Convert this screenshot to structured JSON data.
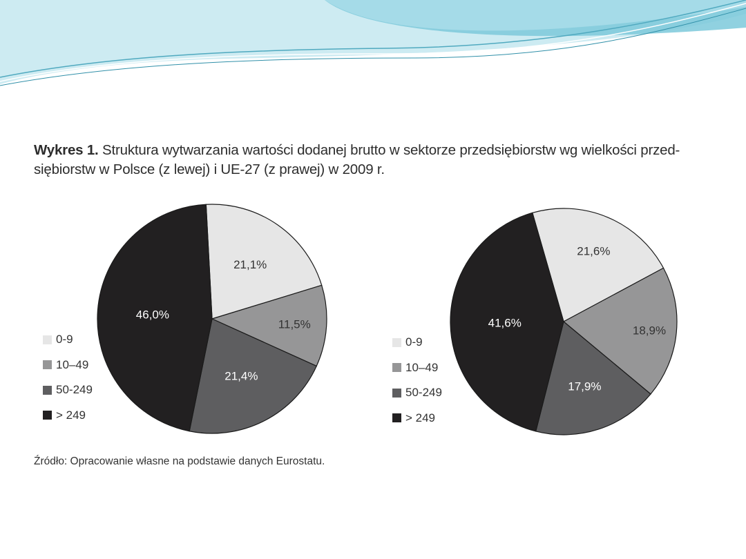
{
  "slide": {
    "title_bold": "Wykres 1.",
    "title_rest": " Struktura wytwarzania wartości dodanej brutto w sektorze przedsiębiorstw wg wielkości przed-siębiorstw w Polsce (z lewej) i UE-27 (z prawej) w 2009 r.",
    "source": "Źródło: Opracowanie własne na podstawie danych Eurostatu."
  },
  "colors": {
    "0-9": "#e6e6e6",
    "10-49": "#969697",
    "50-249": "#5e5e60",
    "> 249": "#222021",
    "decor_light": "#bfe6ef",
    "decor_dark": "#5ab8cc"
  },
  "legend": {
    "labels_left": [
      "0-9",
      "10–49",
      "50-249",
      "> 249"
    ],
    "labels_right": [
      "0-9",
      "10–49",
      "50-249",
      "> 249"
    ]
  },
  "chart_data": [
    {
      "type": "pie",
      "title": "",
      "categories": [
        "0-9",
        "10-49",
        "50-249",
        "> 249"
      ],
      "values": [
        21.1,
        11.5,
        21.4,
        46.0
      ],
      "labels": [
        "21,1%",
        "11,5%",
        "21,4%",
        "46,0%"
      ],
      "start_angle_deg": -3,
      "legend_position": "left"
    },
    {
      "type": "pie",
      "title": "",
      "categories": [
        "0-9",
        "10-49",
        "50-249",
        "> 249"
      ],
      "values": [
        21.6,
        18.9,
        17.9,
        41.6
      ],
      "labels": [
        "21,6%",
        "18,9%",
        "17,9%",
        "41,6%"
      ],
      "start_angle_deg": -16,
      "legend_position": "left"
    }
  ]
}
